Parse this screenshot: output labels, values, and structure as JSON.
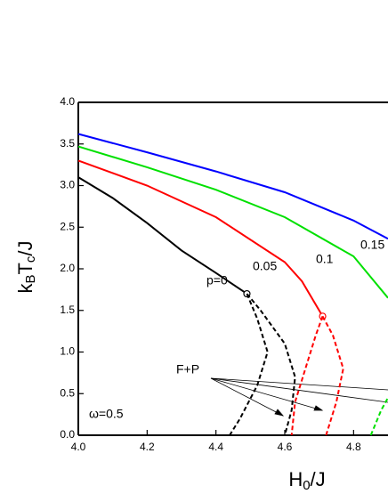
{
  "chart_data": {
    "type": "line",
    "xlabel": {
      "main": "H",
      "sub": "0",
      "tail": "/J"
    },
    "ylabel": {
      "main": "k",
      "sub1": "B",
      "mid": "T",
      "sub2": "c",
      "tail": "/J"
    },
    "annotations": [
      "F+P",
      "ω=0.5"
    ],
    "xlim": [
      4.0,
      4.9
    ],
    "ylim": [
      0.0,
      4.0
    ],
    "xticks": [
      {
        "value": 4,
        "label": "4.0"
      },
      4.2,
      4.4,
      4.6,
      4.8
    ],
    "yticks": [
      {
        "value": 0,
        "label": "0.0"
      },
      0.5,
      {
        "value": 1,
        "label": "1.0"
      },
      1.5,
      {
        "value": 2,
        "label": "2.0"
      },
      2.5,
      {
        "value": 3,
        "label": "3.0"
      },
      3.5,
      {
        "value": 4,
        "label": "4.0"
      }
    ],
    "series": [
      {
        "name": "0.15",
        "color": "#0000ff",
        "dashed": false,
        "x": [
          4.0,
          4.2,
          4.4,
          4.6,
          4.8,
          4.9
        ],
        "values": [
          3.62,
          3.4,
          3.17,
          2.92,
          2.58,
          2.36
        ]
      },
      {
        "name": "0.1",
        "color": "#00e000",
        "dashed": false,
        "x": [
          4.0,
          4.2,
          4.4,
          4.6,
          4.8,
          4.9
        ],
        "values": [
          3.47,
          3.22,
          2.95,
          2.62,
          2.15,
          1.65
        ]
      },
      {
        "name": "0.05",
        "color": "#ff0000",
        "dashed": false,
        "end_marker": true,
        "x": [
          4.0,
          4.2,
          4.4,
          4.6,
          4.65,
          4.71
        ],
        "values": [
          3.3,
          3.0,
          2.62,
          2.08,
          1.85,
          1.43
        ]
      },
      {
        "name": "p=0",
        "color": "#000000",
        "dashed": false,
        "end_marker": true,
        "x": [
          4.0,
          4.1,
          4.2,
          4.3,
          4.4,
          4.49
        ],
        "values": [
          3.1,
          2.85,
          2.55,
          2.22,
          1.95,
          1.7
        ]
      },
      {
        "color": "#000000",
        "dashed": true,
        "x": [
          4.49,
          4.52,
          4.55,
          4.52,
          4.47,
          4.44
        ],
        "values": [
          1.7,
          1.4,
          1.0,
          0.6,
          0.2,
          0.0
        ]
      },
      {
        "color": "#000000",
        "dashed": true,
        "x": [
          4.49,
          4.53,
          4.6,
          4.63,
          4.62,
          4.6
        ],
        "values": [
          1.7,
          1.5,
          1.1,
          0.7,
          0.3,
          0.0
        ]
      },
      {
        "color": "#ff0000",
        "dashed": true,
        "x": [
          4.71,
          4.69,
          4.66,
          4.63,
          4.62
        ],
        "values": [
          1.43,
          1.2,
          0.8,
          0.4,
          0.0
        ]
      },
      {
        "color": "#ff0000",
        "dashed": true,
        "x": [
          4.71,
          4.74,
          4.77,
          4.75,
          4.72
        ],
        "values": [
          1.43,
          1.2,
          0.8,
          0.4,
          0.0
        ]
      },
      {
        "color": "#00e000",
        "dashed": true,
        "x": [
          4.85,
          4.88,
          4.9
        ],
        "values": [
          0.0,
          0.3,
          0.45
        ]
      }
    ]
  }
}
